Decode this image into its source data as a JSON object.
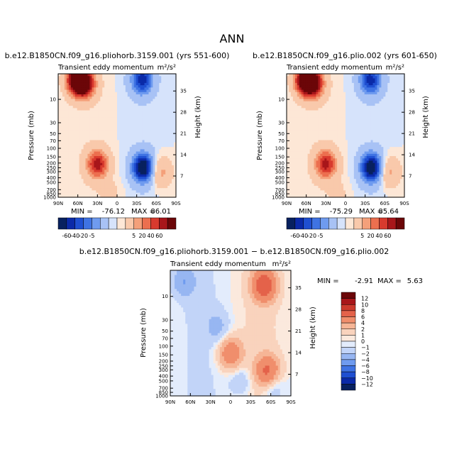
{
  "page_title": "ANN",
  "colors": {
    "cb1": [
      "#08215f",
      "#0b2aa8",
      "#1f4fd1",
      "#3f73e3",
      "#6f9bef",
      "#a8c2f5",
      "#d6e3fb",
      "#fde7d6",
      "#f9c9ab",
      "#f4a07a",
      "#ec6f4f",
      "#d83a2e",
      "#a8161a",
      "#6b0608"
    ],
    "cb2": [
      "#08215f",
      "#0b2aa8",
      "#1f4fd1",
      "#3f73e3",
      "#6f9bef",
      "#97b6f2",
      "#c2d4f8",
      "#e3ecfc",
      "#fbe9dd",
      "#f9d3bd",
      "#f6b596",
      "#f08e6c",
      "#e4624a",
      "#cc3a2d",
      "#a8161a",
      "#6b0608"
    ]
  },
  "chart_data": [
    {
      "type": "heatmap",
      "panel": "top-left",
      "title": "b.e12.B1850CN.f09_g16.pliohorb.3159.001 (yrs 551-600)",
      "subtitle": "Transient eddy momentum",
      "units": "m²/s²",
      "xlabel": "",
      "ylabel": "Pressure (mb)",
      "ylabel_right": "Height (km)",
      "x_ticks": [
        "90N",
        "60N",
        "30N",
        "0",
        "30S",
        "60S",
        "90S"
      ],
      "y_ticks": [
        "10",
        "30",
        "50",
        "70",
        "100",
        "150",
        "200",
        "250",
        "300",
        "400",
        "500",
        "700",
        "850",
        "1000"
      ],
      "y2_ticks": [
        "35",
        "28",
        "21",
        "14",
        "7"
      ],
      "stats": {
        "min_label": "MIN =",
        "min": "-76.12",
        "max_label": "MAX =",
        "max": "86.01"
      },
      "blobs": [
        {
          "lat": -60,
          "p": 4,
          "value": 86
        },
        {
          "lat": -48,
          "p": 5,
          "value": 45
        },
        {
          "lat": -30,
          "p": 210,
          "value": 55
        },
        {
          "lat": 38,
          "p": 4,
          "value": -55
        },
        {
          "lat": 40,
          "p": 250,
          "value": -76
        },
        {
          "lat": 65,
          "p": 300,
          "value": 28
        },
        {
          "lat": -10,
          "p": 900,
          "value": 8
        }
      ]
    },
    {
      "type": "heatmap",
      "panel": "top-right",
      "title": "b.e12.B1850CN.f09_g16.plio.002 (yrs 601-650)",
      "subtitle": "Transient eddy momentum",
      "units": "m²/s²",
      "xlabel": "",
      "ylabel": "Pressure (mb)",
      "ylabel_right": "Height (km)",
      "x_ticks": [
        "90N",
        "60N",
        "30N",
        "0",
        "30S",
        "60S",
        "90S"
      ],
      "y_ticks": [
        "10",
        "30",
        "50",
        "70",
        "100",
        "150",
        "200",
        "250",
        "300",
        "400",
        "500",
        "700",
        "850",
        "1000"
      ],
      "y2_ticks": [
        "35",
        "28",
        "21",
        "14",
        "7"
      ],
      "stats": {
        "min_label": "MIN =",
        "min": "-75.29",
        "max_label": "MAX =",
        "max": "85.64"
      },
      "blobs": [
        {
          "lat": -60,
          "p": 4,
          "value": 85
        },
        {
          "lat": -48,
          "p": 5,
          "value": 44
        },
        {
          "lat": -30,
          "p": 210,
          "value": 54
        },
        {
          "lat": 38,
          "p": 4,
          "value": -54
        },
        {
          "lat": 40,
          "p": 250,
          "value": -75
        },
        {
          "lat": 65,
          "p": 300,
          "value": 27
        },
        {
          "lat": -10,
          "p": 900,
          "value": 7
        }
      ]
    },
    {
      "type": "heatmap",
      "panel": "bottom",
      "title": "b.e12.B1850CN.f09_g16.pliohorb.3159.001 − b.e12.B1850CN.f09_g16.plio.002",
      "subtitle": "Transient eddy momentum",
      "units": "m²/s²",
      "xlabel": "",
      "ylabel": "Pressure (mb)",
      "ylabel_right": "Height (km)",
      "x_ticks": [
        "90N",
        "60N",
        "30N",
        "0",
        "30S",
        "60S",
        "90S"
      ],
      "y_ticks": [
        "10",
        "30",
        "50",
        "70",
        "100",
        "150",
        "200",
        "250",
        "300",
        "400",
        "500",
        "700",
        "850",
        "1000"
      ],
      "y2_ticks": [
        "35",
        "28",
        "21",
        "14",
        "7"
      ],
      "stats": {
        "min_label": "MIN =",
        "min": "-2.91",
        "max_label": "MAX =",
        "max": "5.63"
      },
      "blobs": [
        {
          "lat": -70,
          "p": 5,
          "value": -1.8
        },
        {
          "lat": 50,
          "p": 6,
          "value": 5.6
        },
        {
          "lat": -20,
          "p": 40,
          "value": -1.2
        },
        {
          "lat": 0,
          "p": 140,
          "value": 3.5
        },
        {
          "lat": 55,
          "p": 320,
          "value": 4.5
        },
        {
          "lat": 62,
          "p": 600,
          "value": -1.5
        },
        {
          "lat": 15,
          "p": 500,
          "value": -1.0
        }
      ]
    }
  ],
  "colorbars": [
    {
      "name": "top",
      "labels": [
        "-60",
        "-40",
        "-20",
        "-5",
        "5",
        "20",
        "40",
        "60"
      ],
      "tick_after": [
        1,
        2,
        3,
        4,
        9,
        10,
        11,
        12
      ],
      "colors": "cb1"
    },
    {
      "name": "bottom",
      "labels": [
        "12",
        "10",
        "8",
        "6",
        "4",
        "2",
        "1",
        "0",
        "−1",
        "−2",
        "−4",
        "−6",
        "−8",
        "−10",
        "−12"
      ],
      "colors": "cb2"
    }
  ]
}
